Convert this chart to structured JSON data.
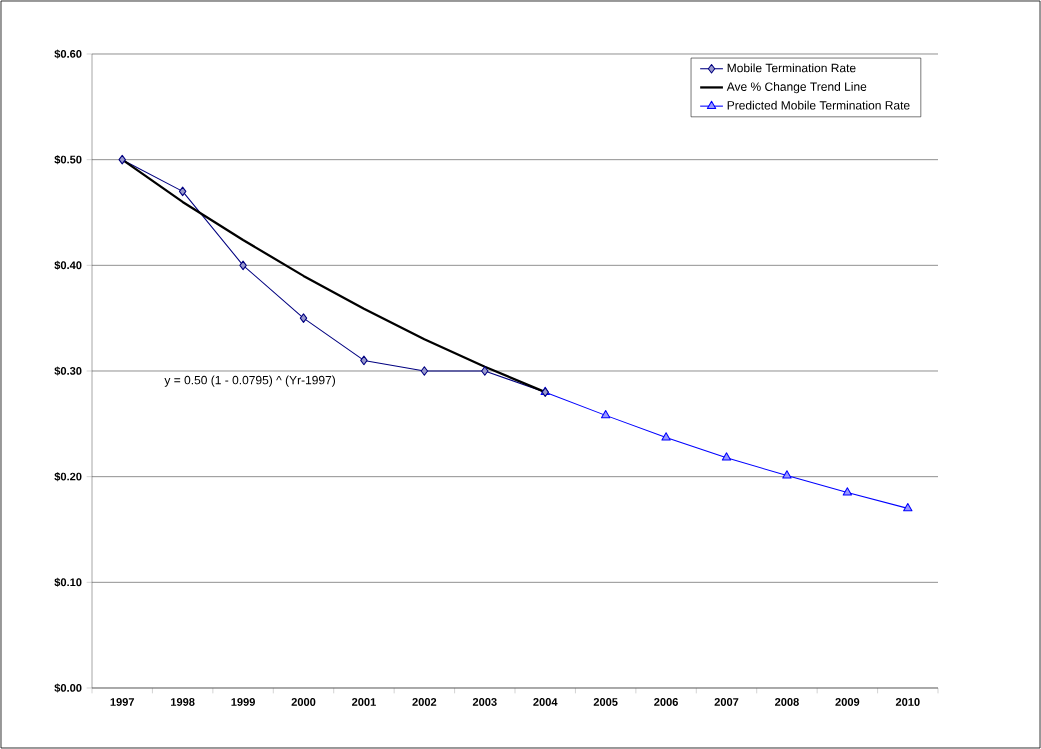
{
  "chart_data": {
    "type": "line",
    "categories": [
      "1997",
      "1998",
      "1999",
      "2000",
      "2001",
      "2002",
      "2003",
      "2004",
      "2005",
      "2006",
      "2007",
      "2008",
      "2009",
      "2010"
    ],
    "series": [
      {
        "name": "Mobile Termination Rate",
        "color": "#000080",
        "marker": "diamond",
        "values": [
          0.5,
          0.47,
          0.4,
          0.35,
          0.31,
          0.3,
          0.3,
          0.28,
          null,
          null,
          null,
          null,
          null,
          null
        ]
      },
      {
        "name": "Ave % Change Trend Line",
        "color": "#000000",
        "marker": "none",
        "values": [
          0.5,
          0.46,
          0.424,
          0.39,
          0.359,
          0.33,
          0.304,
          0.28,
          null,
          null,
          null,
          null,
          null,
          null
        ]
      },
      {
        "name": "Predicted Mobile Termination Rate",
        "color": "#0000ff",
        "marker": "triangle",
        "values": [
          null,
          null,
          null,
          null,
          null,
          null,
          null,
          0.28,
          0.258,
          0.237,
          0.218,
          0.201,
          0.185,
          0.17
        ]
      }
    ],
    "ylim": [
      0,
      0.6
    ],
    "yticks": [
      {
        "value": 0,
        "label": "$0.00"
      },
      {
        "value": 0.1,
        "label": "$0.10"
      },
      {
        "value": 0.2,
        "label": "$0.20"
      },
      {
        "value": 0.3,
        "label": "$0.30"
      },
      {
        "value": 0.4,
        "label": "$0.40"
      },
      {
        "value": 0.5,
        "label": "$0.50"
      },
      {
        "value": 0.6,
        "label": "$0.60"
      }
    ],
    "grid": "y",
    "legend": "top right",
    "annotations": [
      "y = 0.50 (1 - 0.0795) ^ (Yr-1997)"
    ]
  }
}
